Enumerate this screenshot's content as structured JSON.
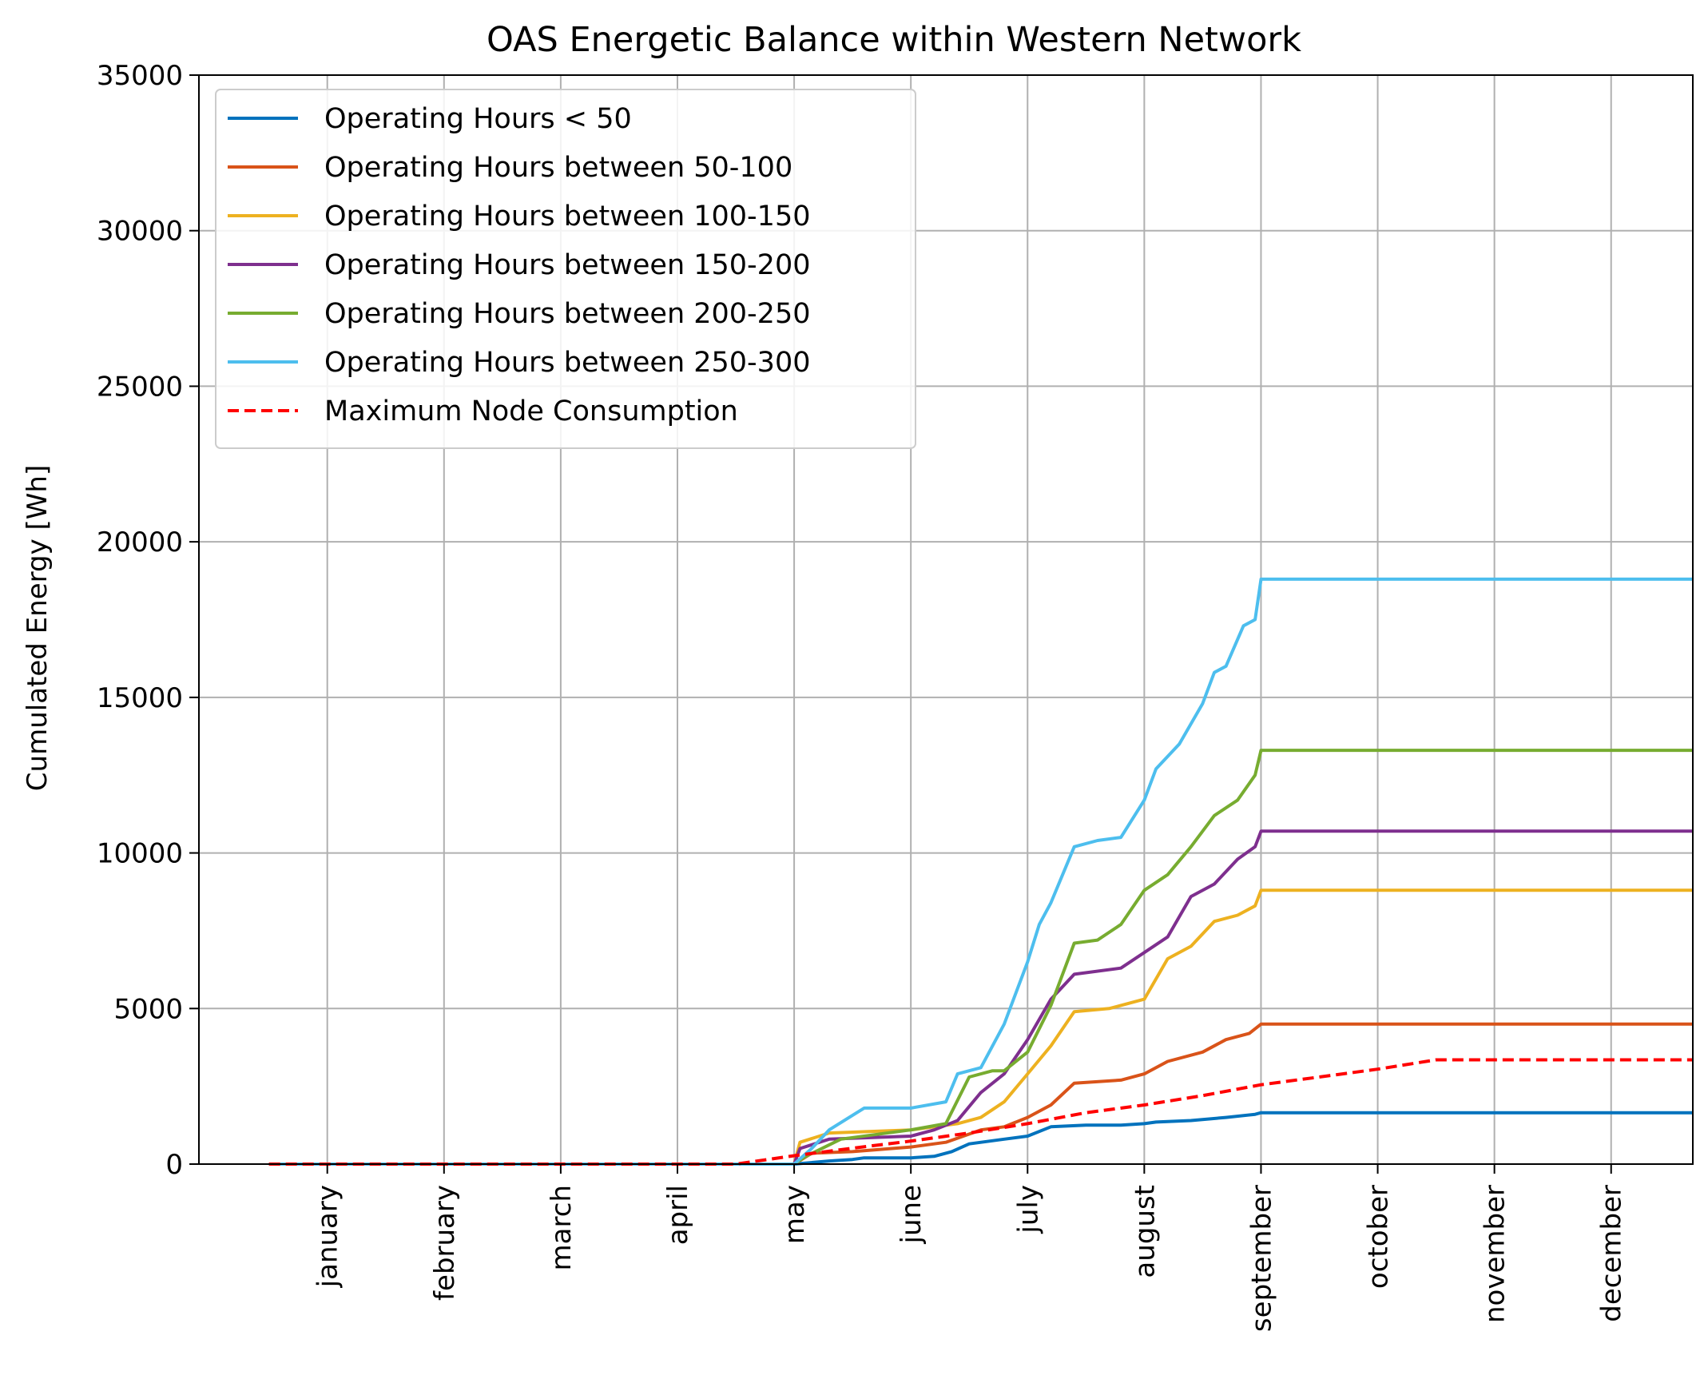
{
  "chart_data": {
    "type": "line",
    "title": "OAS Energetic Balance within Western Network",
    "xlabel": "",
    "ylabel": "Cumulated Energy [Wh]",
    "x_unit": "month index (1 = january tick)",
    "xlim": [
      -0.1,
      12.7
    ],
    "ylim": [
      0,
      35000
    ],
    "yticks": [
      0,
      5000,
      10000,
      15000,
      20000,
      25000,
      30000,
      35000
    ],
    "categories": [
      "january",
      "february",
      "march",
      "april",
      "may",
      "june",
      "july",
      "august",
      "september",
      "october",
      "november",
      "december"
    ],
    "grid": true,
    "legend_position": "upper-left",
    "series": [
      {
        "name": "Operating Hours < 50",
        "color": "#0072BD",
        "dash": false,
        "x": [
          0.5,
          5.0,
          5.3,
          5.5,
          5.6,
          5.8,
          6.0,
          6.2,
          6.35,
          6.5,
          6.8,
          7.0,
          7.2,
          7.5,
          7.8,
          8.0,
          8.1,
          8.4,
          8.7,
          8.95,
          9.0,
          12.7
        ],
        "y": [
          0,
          0,
          100,
          150,
          200,
          200,
          200,
          250,
          400,
          650,
          800,
          900,
          1200,
          1250,
          1250,
          1300,
          1350,
          1400,
          1500,
          1600,
          1650,
          1650
        ]
      },
      {
        "name": "Operating Hours between 50-100",
        "color": "#D95319",
        "dash": false,
        "x": [
          0.5,
          5.0,
          5.15,
          5.5,
          6.0,
          6.3,
          6.6,
          6.8,
          7.0,
          7.2,
          7.4,
          7.8,
          8.0,
          8.2,
          8.5,
          8.7,
          8.9,
          9.0,
          12.7
        ],
        "y": [
          0,
          0,
          350,
          400,
          550,
          700,
          1100,
          1200,
          1500,
          1900,
          2600,
          2700,
          2900,
          3300,
          3600,
          4000,
          4200,
          4500,
          4500
        ]
      },
      {
        "name": "Operating Hours between 100-150",
        "color": "#EDB120",
        "dash": false,
        "x": [
          0.5,
          5.0,
          5.05,
          5.3,
          6.0,
          6.2,
          6.4,
          6.6,
          6.8,
          7.0,
          7.2,
          7.4,
          7.7,
          8.0,
          8.2,
          8.4,
          8.6,
          8.8,
          8.95,
          9.0,
          12.7
        ],
        "y": [
          0,
          0,
          700,
          1000,
          1100,
          1200,
          1300,
          1500,
          2000,
          2900,
          3800,
          4900,
          5000,
          5300,
          6600,
          7000,
          7800,
          8000,
          8300,
          8800,
          8800
        ]
      },
      {
        "name": "Operating Hours between 150-200",
        "color": "#7E2F8E",
        "dash": false,
        "x": [
          0.5,
          5.0,
          5.05,
          5.3,
          6.0,
          6.2,
          6.4,
          6.6,
          6.8,
          7.0,
          7.2,
          7.4,
          7.8,
          8.0,
          8.2,
          8.4,
          8.6,
          8.8,
          8.95,
          9.0,
          12.7
        ],
        "y": [
          0,
          0,
          500,
          800,
          900,
          1100,
          1400,
          2300,
          2900,
          4000,
          5300,
          6100,
          6300,
          6800,
          7300,
          8600,
          9000,
          9800,
          10200,
          10700,
          10700
        ]
      },
      {
        "name": "Operating Hours between 200-250",
        "color": "#77AC30",
        "dash": false,
        "x": [
          0.5,
          5.0,
          5.1,
          5.4,
          6.0,
          6.3,
          6.5,
          6.7,
          6.8,
          7.0,
          7.2,
          7.4,
          7.6,
          7.8,
          8.0,
          8.2,
          8.4,
          8.6,
          8.8,
          8.95,
          9.0,
          12.7
        ],
        "y": [
          0,
          0,
          250,
          800,
          1100,
          1300,
          2800,
          3000,
          3000,
          3600,
          5100,
          7100,
          7200,
          7700,
          8800,
          9300,
          10200,
          11200,
          11700,
          12500,
          13300,
          13300
        ]
      },
      {
        "name": "Operating Hours between 250-300",
        "color": "#4DBEEE",
        "dash": false,
        "x": [
          0.5,
          5.0,
          5.15,
          5.3,
          5.6,
          6.0,
          6.3,
          6.4,
          6.6,
          6.8,
          7.0,
          7.1,
          7.2,
          7.4,
          7.6,
          7.8,
          8.0,
          8.1,
          8.3,
          8.5,
          8.6,
          8.7,
          8.85,
          8.95,
          9.0,
          12.7
        ],
        "y": [
          0,
          0,
          500,
          1100,
          1800,
          1800,
          2000,
          2900,
          3100,
          4500,
          6500,
          7700,
          8400,
          10200,
          10400,
          10500,
          11700,
          12700,
          13500,
          14800,
          15800,
          16000,
          17300,
          17500,
          18800,
          18800
        ]
      },
      {
        "name": "Maximum Node Consumption",
        "color": "#FF0000",
        "dash": true,
        "x": [
          0.5,
          4.5,
          5.0,
          5.5,
          6.0,
          6.5,
          7.0,
          7.5,
          8.0,
          8.5,
          9.0,
          9.5,
          10.0,
          10.5,
          11.0,
          12.7
        ],
        "y": [
          0,
          0,
          270,
          510,
          740,
          1000,
          1300,
          1650,
          1900,
          2200,
          2550,
          2800,
          3050,
          3350,
          3350,
          3350
        ]
      }
    ]
  }
}
